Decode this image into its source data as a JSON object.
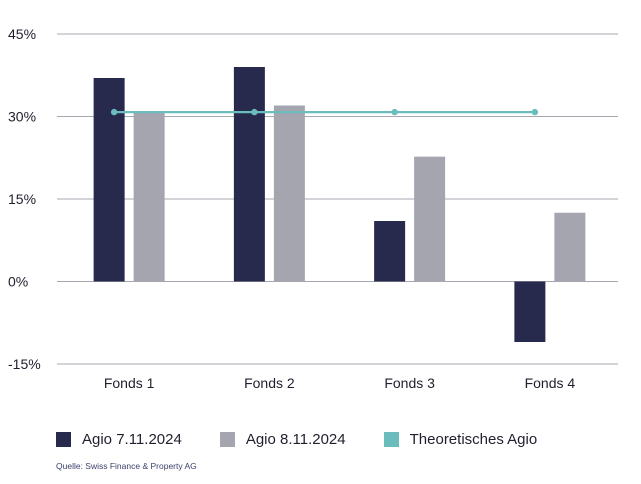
{
  "chart_data": {
    "type": "bar",
    "categories": [
      "Fonds 1",
      "Fonds 2",
      "Fonds 3",
      "Fonds 4"
    ],
    "series": [
      {
        "name": "Agio 7.11.2024",
        "kind": "bar",
        "color": "#272a4c",
        "values": [
          37,
          39,
          11,
          -11
        ]
      },
      {
        "name": "Agio 8.11.2024",
        "kind": "bar",
        "color": "#a5a5b0",
        "values": [
          31,
          32,
          22.7,
          12.5
        ]
      },
      {
        "name": "Theoretisches Agio",
        "kind": "line",
        "color": "#6bbcbc",
        "values": [
          30.8,
          30.8,
          30.8,
          30.8
        ]
      }
    ],
    "ylim": [
      -15,
      45
    ],
    "yticks": [
      45,
      30,
      15,
      0,
      -15
    ],
    "ytick_labels": [
      "45%",
      "30%",
      "15%",
      "0%",
      "-15%"
    ],
    "grid": true,
    "legend_position": "bottom-left"
  },
  "source": "Quelle: Swiss Finance & Property AG"
}
